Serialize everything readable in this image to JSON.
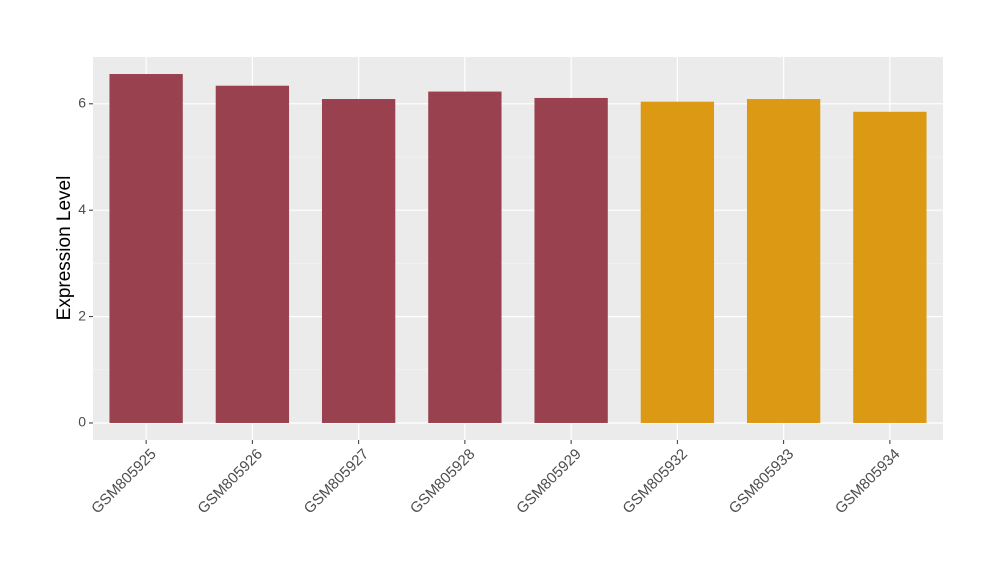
{
  "chart_data": {
    "type": "bar",
    "y_label": "Expression Level",
    "categories": [
      "GSM805925",
      "GSM805926",
      "GSM805927",
      "GSM805928",
      "GSM805929",
      "GSM805932",
      "GSM805933",
      "GSM805934"
    ],
    "values": [
      6.56,
      6.34,
      6.09,
      6.23,
      6.11,
      6.04,
      6.09,
      5.85
    ],
    "colors": [
      "#99414f",
      "#99414f",
      "#99414f",
      "#99414f",
      "#99414f",
      "#dc9914",
      "#dc9914",
      "#dc9914"
    ],
    "ylim": [
      -0.32,
      6.88
    ],
    "yticks": [
      0,
      2,
      4,
      6
    ],
    "grid": true
  }
}
